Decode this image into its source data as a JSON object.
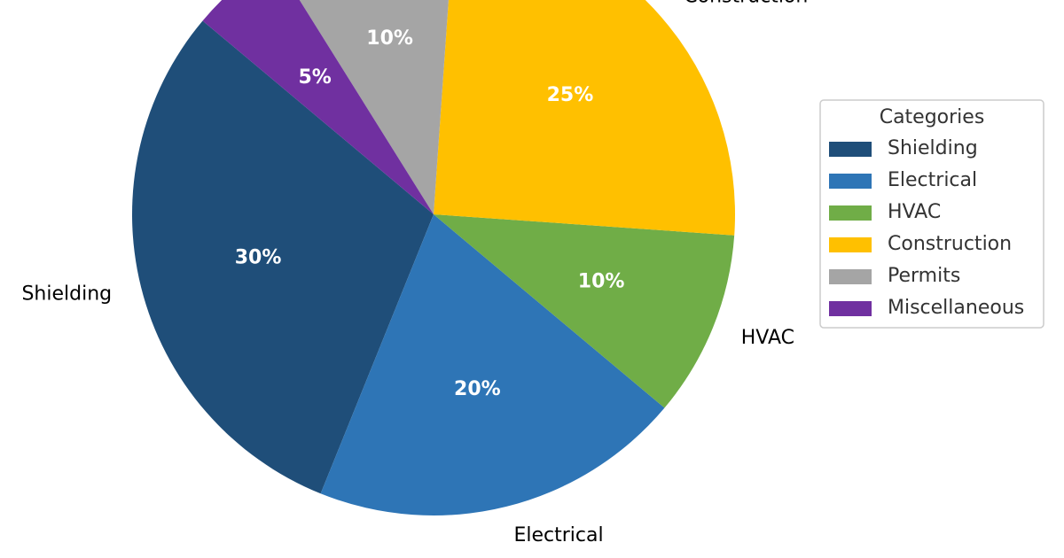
{
  "chart_data": {
    "type": "pie",
    "categories": [
      "Shielding",
      "Electrical",
      "HVAC",
      "Construction",
      "Permits",
      "Miscellaneous"
    ],
    "values": [
      30,
      20,
      10,
      25,
      10,
      5
    ],
    "value_labels": [
      "30%",
      "20%",
      "10%",
      "25%",
      "10%",
      "5%"
    ],
    "colors": [
      "#1f4e79",
      "#2e75b6",
      "#70ad47",
      "#ffc000",
      "#a5a5a5",
      "#7030a0"
    ],
    "legend_title": "Categories",
    "legend": "right"
  }
}
